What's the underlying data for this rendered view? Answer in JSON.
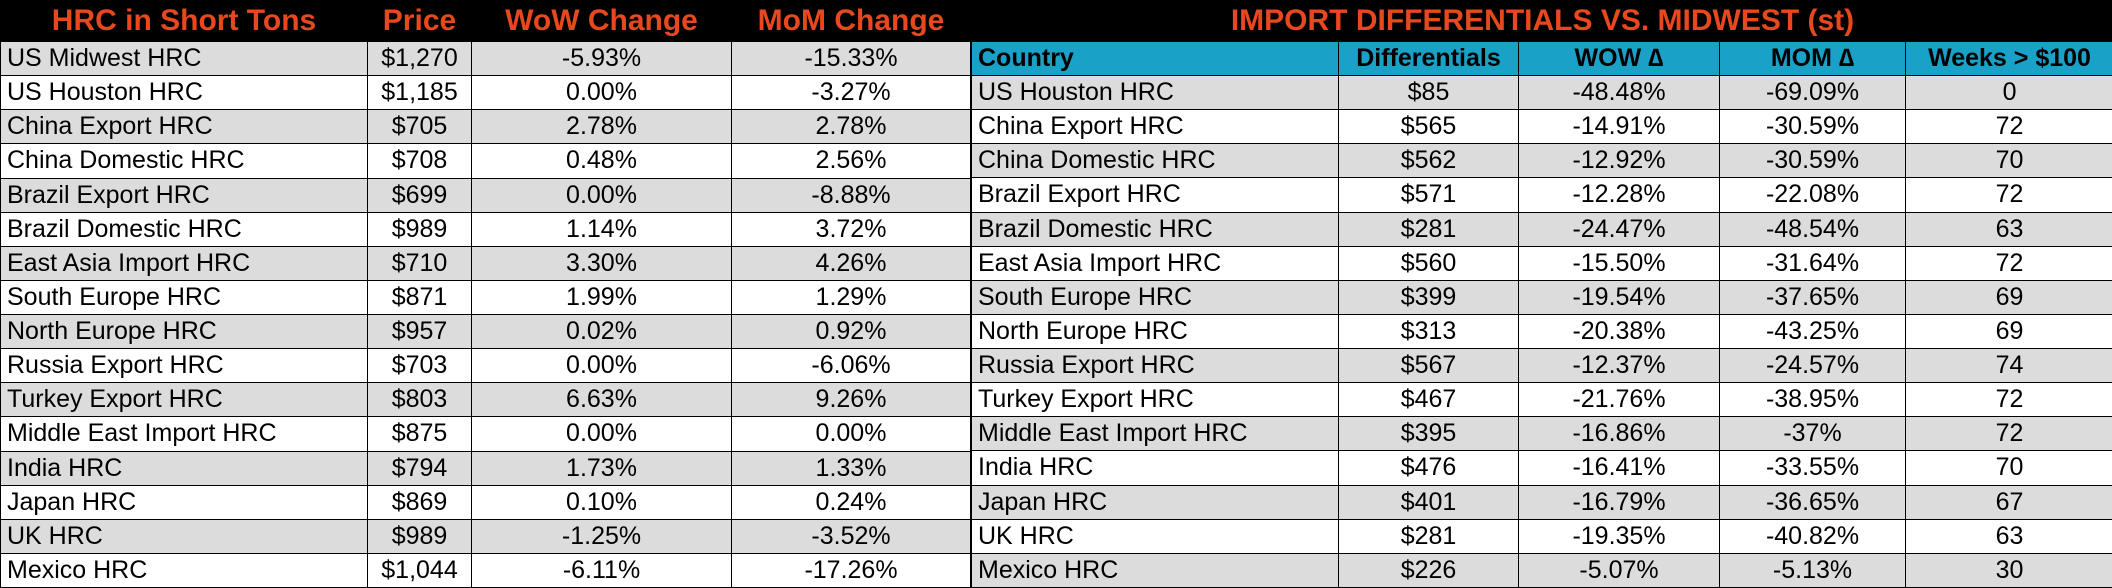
{
  "left_table": {
    "headers": [
      "HRC in Short Tons",
      "Price",
      "WoW Change",
      "MoM Change"
    ],
    "rows": [
      [
        "US Midwest HRC",
        "$1,270",
        "-5.93%",
        "-15.33%"
      ],
      [
        "US Houston HRC",
        "$1,185",
        "0.00%",
        "-3.27%"
      ],
      [
        "China Export HRC",
        "$705",
        "2.78%",
        "2.78%"
      ],
      [
        "China Domestic HRC",
        "$708",
        "0.48%",
        "2.56%"
      ],
      [
        "Brazil Export HRC",
        "$699",
        "0.00%",
        "-8.88%"
      ],
      [
        "Brazil Domestic HRC",
        "$989",
        "1.14%",
        "3.72%"
      ],
      [
        "East Asia Import HRC",
        "$710",
        "3.30%",
        "4.26%"
      ],
      [
        "South Europe HRC",
        "$871",
        "1.99%",
        "1.29%"
      ],
      [
        "North Europe HRC",
        "$957",
        "0.02%",
        "0.92%"
      ],
      [
        "Russia Export HRC",
        "$703",
        "0.00%",
        "-6.06%"
      ],
      [
        "Turkey Export HRC",
        "$803",
        "6.63%",
        "9.26%"
      ],
      [
        "Middle East Import HRC",
        "$875",
        "0.00%",
        "0.00%"
      ],
      [
        "India HRC",
        "$794",
        "1.73%",
        "1.33%"
      ],
      [
        "Japan HRC",
        "$869",
        "0.10%",
        "0.24%"
      ],
      [
        "UK HRC",
        "$989",
        "-1.25%",
        "-3.52%"
      ],
      [
        "Mexico HRC",
        "$1,044",
        "-6.11%",
        "-17.26%"
      ]
    ]
  },
  "right_table": {
    "title": "IMPORT DIFFERENTIALS VS. MIDWEST (st)",
    "headers": [
      "Country",
      "Differentials",
      "WOW ∆",
      "MOM ∆",
      "Weeks > $100"
    ],
    "rows": [
      [
        "US Houston HRC",
        "$85",
        "-48.48%",
        "-69.09%",
        "0"
      ],
      [
        "China Export HRC",
        "$565",
        "-14.91%",
        "-30.59%",
        "72"
      ],
      [
        "China Domestic HRC",
        "$562",
        "-12.92%",
        "-30.59%",
        "70"
      ],
      [
        "Brazil Export HRC",
        "$571",
        "-12.28%",
        "-22.08%",
        "72"
      ],
      [
        "Brazil Domestic HRC",
        "$281",
        "-24.47%",
        "-48.54%",
        "63"
      ],
      [
        "East Asia Import HRC",
        "$560",
        "-15.50%",
        "-31.64%",
        "72"
      ],
      [
        "South Europe HRC",
        "$399",
        "-19.54%",
        "-37.65%",
        "69"
      ],
      [
        "North Europe HRC",
        "$313",
        "-20.38%",
        "-43.25%",
        "69"
      ],
      [
        "Russia Export HRC",
        "$567",
        "-12.37%",
        "-24.57%",
        "74"
      ],
      [
        "Turkey Export HRC",
        "$467",
        "-21.76%",
        "-38.95%",
        "72"
      ],
      [
        "Middle East Import HRC",
        "$395",
        "-16.86%",
        "-37%",
        "72"
      ],
      [
        "India HRC",
        "$476",
        "-16.41%",
        "-33.55%",
        "70"
      ],
      [
        "Japan HRC",
        "$401",
        "-16.79%",
        "-36.65%",
        "67"
      ],
      [
        "UK HRC",
        "$281",
        "-19.35%",
        "-40.82%",
        "63"
      ],
      [
        "Mexico HRC",
        "$226",
        "-5.07%",
        "-5.13%",
        "30"
      ]
    ]
  },
  "colors": {
    "header_bg": "#000000",
    "header_text": "#e8481d",
    "subheader_bg": "#1aa1c7",
    "row_alt": "#dcdcdc"
  }
}
